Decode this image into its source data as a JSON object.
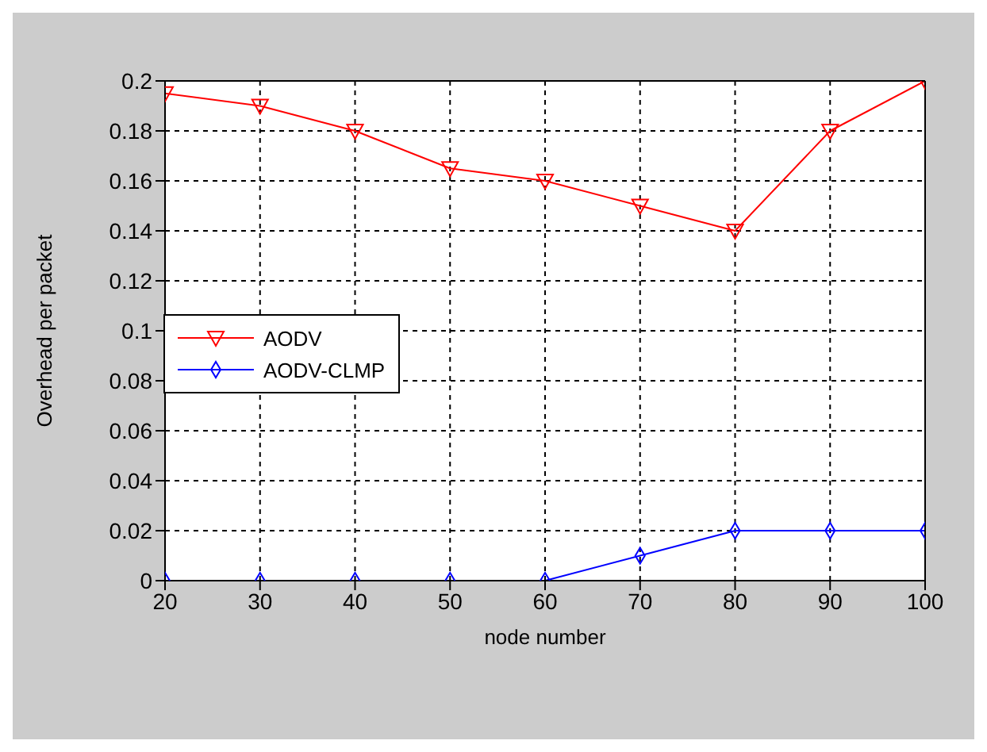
{
  "chart_data": {
    "type": "line",
    "xlabel": "node number",
    "ylabel": "Overhead per packet",
    "x": [
      20,
      30,
      40,
      50,
      60,
      70,
      80,
      90,
      100
    ],
    "series": [
      {
        "name": "AODV",
        "color": "#ff0000",
        "marker": "triangle",
        "values": [
          0.195,
          0.19,
          0.18,
          0.165,
          0.16,
          0.15,
          0.14,
          0.18,
          0.2
        ]
      },
      {
        "name": "AODV-CLMP",
        "color": "#0000ff",
        "marker": "diamond",
        "values": [
          0,
          0,
          0,
          0,
          0,
          0.01,
          0.02,
          0.02,
          0.02
        ]
      }
    ],
    "xlim": [
      20,
      100
    ],
    "xticks": [
      20,
      30,
      40,
      50,
      60,
      70,
      80,
      90,
      100
    ],
    "ylim": [
      0,
      0.2
    ],
    "yticks": [
      0,
      0.02,
      0.04,
      0.06,
      0.08,
      0.1,
      0.12,
      0.14,
      0.16,
      0.18,
      0.2
    ],
    "grid": true,
    "legend": "left",
    "line_style": "solid"
  }
}
